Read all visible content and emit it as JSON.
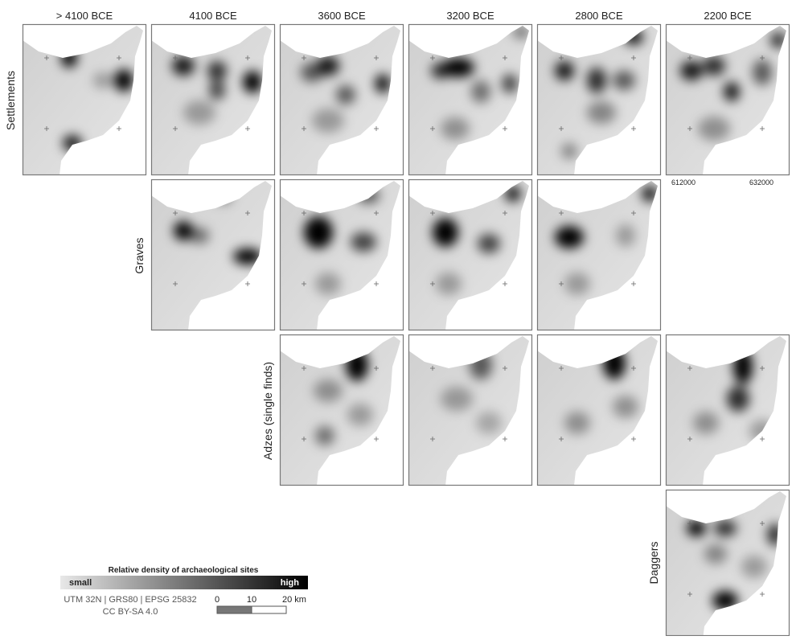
{
  "columns": [
    "> 4100 BCE",
    "4100 BCE",
    "3600 BCE",
    "3200 BCE",
    "2800 BCE",
    "2200 BCE"
  ],
  "rows": [
    {
      "label": "Settlements"
    },
    {
      "label": "Graves"
    },
    {
      "label": "Adzes (single finds)"
    },
    {
      "label": "Daggers"
    }
  ],
  "coords": [
    "612000",
    "632000"
  ],
  "legend": {
    "title": "Relative density of archaeological sites",
    "low": "small",
    "high": "high",
    "crs": "UTM 32N | GRS80 | EPSG 25832",
    "license": "CC BY-SA 4.0",
    "scale": [
      "0",
      "10",
      "20 km"
    ]
  }
}
